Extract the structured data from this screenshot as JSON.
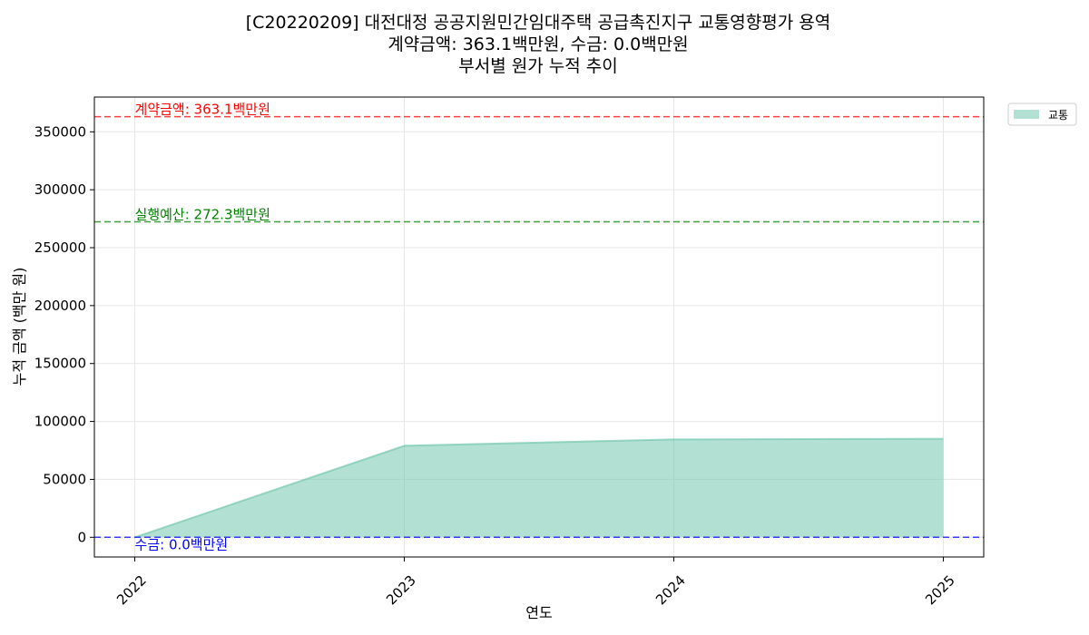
{
  "title_lines": [
    "[C20220209] 대전대정 공공지원민간임대주택 공급촉진지구 교통영향평가 용역",
    "계약금액: 363.1백만원, 수금: 0.0백만원",
    "부서별 원가 누적 추이"
  ],
  "chart_data": {
    "type": "area",
    "title": "[C20220209] 대전대정 공공지원민간임대주택 공급촉진지구 교통영향평가 용역\n계약금액: 363.1백만원, 수금: 0.0백만원\n부서별 원가 누적 추이",
    "xlabel": "연도",
    "ylabel": "누적 금액 (백만 원)",
    "x": [
      "2022",
      "2023",
      "2024",
      "2025"
    ],
    "x_numeric": [
      2022,
      2023,
      2024,
      2025
    ],
    "xlim": [
      2021.85,
      2025.15
    ],
    "ylim": [
      -17000,
      380000
    ],
    "yticks": [
      0,
      50000,
      100000,
      150000,
      200000,
      250000,
      300000,
      350000
    ],
    "ytick_labels": [
      "0",
      "50000",
      "100000",
      "150000",
      "200000",
      "250000",
      "300000",
      "350000"
    ],
    "xtick_labels": [
      "2022",
      "2023",
      "2024",
      "2025"
    ],
    "grid": true,
    "legend_position": "outside-top-right",
    "series": [
      {
        "name": "교통",
        "values": [
          0,
          79000,
          84500,
          85000
        ],
        "color": "#66c2a5"
      }
    ],
    "reference_lines": [
      {
        "label": "계약금액: 363.1백만원",
        "value": 363100,
        "color": "#ff0000"
      },
      {
        "label": "실행예산: 272.3백만원",
        "value": 272300,
        "color": "#008000"
      },
      {
        "label": "수금: 0.0백만원",
        "value": 0,
        "color": "#0000ff"
      }
    ]
  }
}
